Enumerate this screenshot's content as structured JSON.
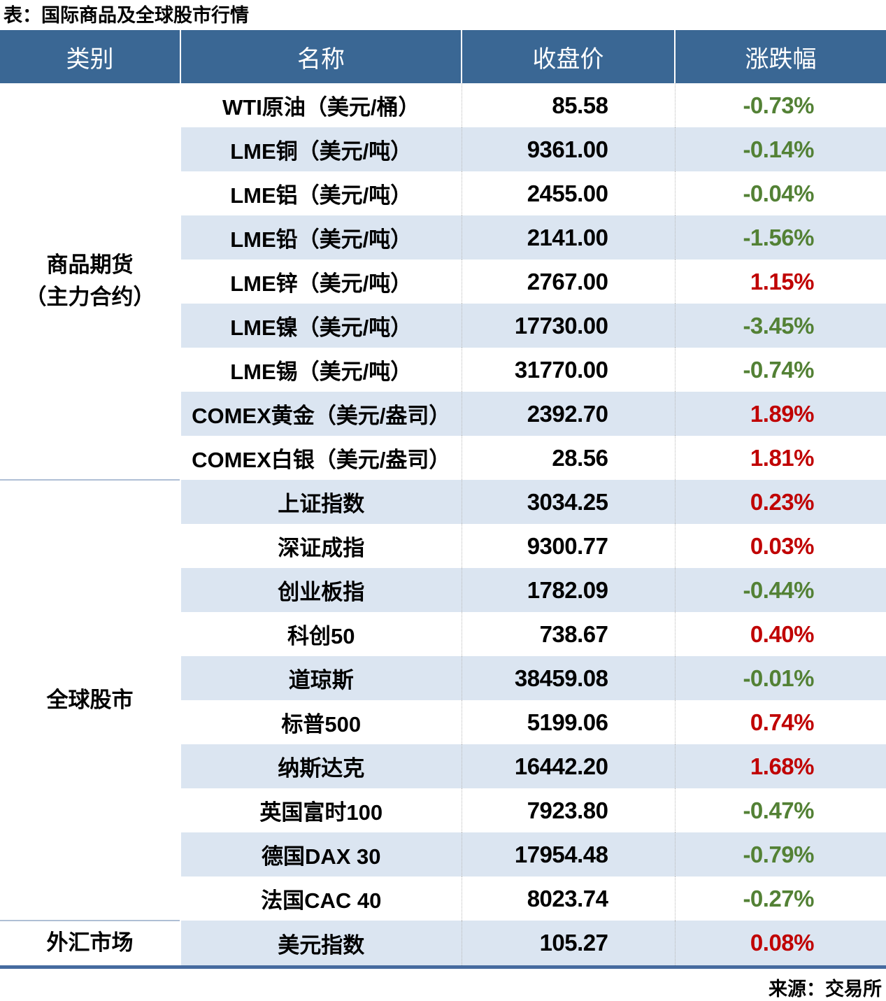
{
  "title": "表：国际商品及全球股市行情",
  "source": "来源：交易所",
  "colors": {
    "header_bg": "#3A6794",
    "row_stripe": "#DBE5F1",
    "up_red": "#C00000",
    "down_green": "#538135",
    "bottom_border": "#466B9F"
  },
  "chart_data": {
    "type": "table",
    "title": "表：国际商品及全球股市行情",
    "source": "来源：交易所",
    "headers": [
      "类别",
      "名称",
      "收盘价",
      "涨跌幅"
    ],
    "groups": [
      {
        "category": "商品期货\n（主力合约）",
        "rows": 9
      },
      {
        "category": "全球股市",
        "rows": 10
      },
      {
        "category": "外汇市场",
        "rows": 1
      }
    ],
    "rows": [
      {
        "name": "WTI原油（美元/桶）",
        "close": "85.58",
        "change": "-0.73%"
      },
      {
        "name": "LME铜（美元/吨）",
        "close": "9361.00",
        "change": "-0.14%"
      },
      {
        "name": "LME铝（美元/吨）",
        "close": "2455.00",
        "change": "-0.04%"
      },
      {
        "name": "LME铅（美元/吨）",
        "close": "2141.00",
        "change": "-1.56%"
      },
      {
        "name": "LME锌（美元/吨）",
        "close": "2767.00",
        "change": "1.15%"
      },
      {
        "name": "LME镍（美元/吨）",
        "close": "17730.00",
        "change": "-3.45%"
      },
      {
        "name": "LME锡（美元/吨）",
        "close": "31770.00",
        "change": "-0.74%"
      },
      {
        "name": "COMEX黄金（美元/盎司）",
        "close": "2392.70",
        "change": "1.89%"
      },
      {
        "name": "COMEX白银（美元/盎司）",
        "close": "28.56",
        "change": "1.81%"
      },
      {
        "name": "上证指数",
        "close": "3034.25",
        "change": "0.23%"
      },
      {
        "name": "深证成指",
        "close": "9300.77",
        "change": "0.03%"
      },
      {
        "name": "创业板指",
        "close": "1782.09",
        "change": "-0.44%"
      },
      {
        "name": "科创50",
        "close": "738.67",
        "change": "0.40%"
      },
      {
        "name": "道琼斯",
        "close": "38459.08",
        "change": "-0.01%"
      },
      {
        "name": "标普500",
        "close": "5199.06",
        "change": "0.74%"
      },
      {
        "name": "纳斯达克",
        "close": "16442.20",
        "change": "1.68%"
      },
      {
        "name": "英国富时100",
        "close": "7923.80",
        "change": "-0.47%"
      },
      {
        "name": "德国DAX 30",
        "close": "17954.48",
        "change": "-0.79%"
      },
      {
        "name": "法国CAC 40",
        "close": "8023.74",
        "change": "-0.27%"
      },
      {
        "name": "美元指数",
        "close": "105.27",
        "change": "0.08%"
      }
    ]
  }
}
